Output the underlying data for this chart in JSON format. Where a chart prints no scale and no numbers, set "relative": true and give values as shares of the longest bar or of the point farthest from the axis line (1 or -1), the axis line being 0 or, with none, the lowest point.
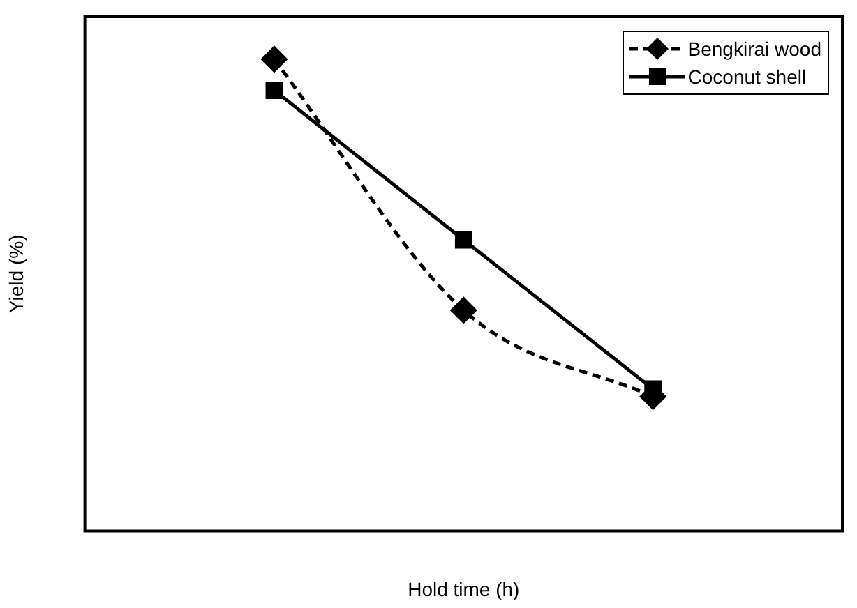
{
  "chart_data": {
    "type": "line",
    "relative": true,
    "xlabel": "Hold time (h)",
    "ylabel": "Yield (%)",
    "categories": [
      null,
      null,
      null
    ],
    "legend": "top right",
    "grid": false,
    "series": [
      {
        "name": "Bengkirai wood",
        "color": "#000000",
        "values": [
          1,
          0.468,
          0.285
        ],
        "marker": "diamond",
        "line_style": "dashed"
      },
      {
        "name": "Coconut shell",
        "color": "#000000",
        "values": [
          0.934,
          0.617,
          0.301
        ],
        "marker": "square",
        "line_style": "solid"
      }
    ]
  }
}
